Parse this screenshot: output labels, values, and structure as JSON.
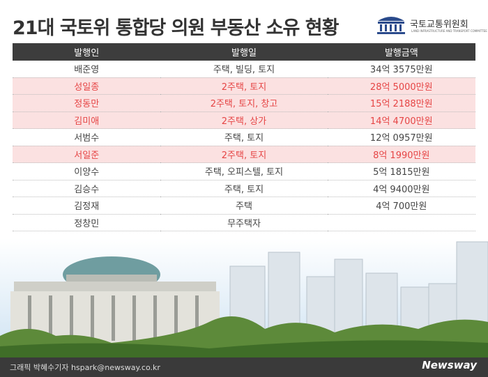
{
  "header": {
    "title": "21대 국토위 통합당 의원 부동산 소유 현황",
    "logo_text": "국토교통위원회",
    "logo_subtext": "LAND INFRASTRUCTURE AND TRANSPORT COMMITTEE"
  },
  "table": {
    "columns": [
      "발행인",
      "발행일",
      "발행금액"
    ],
    "rows": [
      {
        "name": "배준영",
        "assets": "주택, 빌딩, 토지",
        "amount": "34억 3575만원",
        "highlight": false
      },
      {
        "name": "성일종",
        "assets": "2주택, 토지",
        "amount": "28억 5000만원",
        "highlight": true
      },
      {
        "name": "정동만",
        "assets": "2주택, 토지, 창고",
        "amount": "15억 2188만원",
        "highlight": true
      },
      {
        "name": "김미애",
        "assets": "2주택, 상가",
        "amount": "14억 4700만원",
        "highlight": true
      },
      {
        "name": "서범수",
        "assets": "주택, 토지",
        "amount": "12억 0957만원",
        "highlight": false
      },
      {
        "name": "서일준",
        "assets": "2주택, 토지",
        "amount": "8억 1990만원",
        "highlight": true
      },
      {
        "name": "이양수",
        "assets": "주택, 오피스텔, 토지",
        "amount": "5억 1815만원",
        "highlight": false
      },
      {
        "name": "김승수",
        "assets": "주택, 토지",
        "amount": "4억 9400만원",
        "highlight": false
      },
      {
        "name": "김정재",
        "assets": "주택",
        "amount": "4억 700만원",
        "highlight": false
      },
      {
        "name": "정창민",
        "assets": "무주택자",
        "highlight": false
      }
    ]
  },
  "footer": {
    "credit": "그래픽 박혜수기자 hspark@newsway.co.kr",
    "brand": "Newsway"
  }
}
